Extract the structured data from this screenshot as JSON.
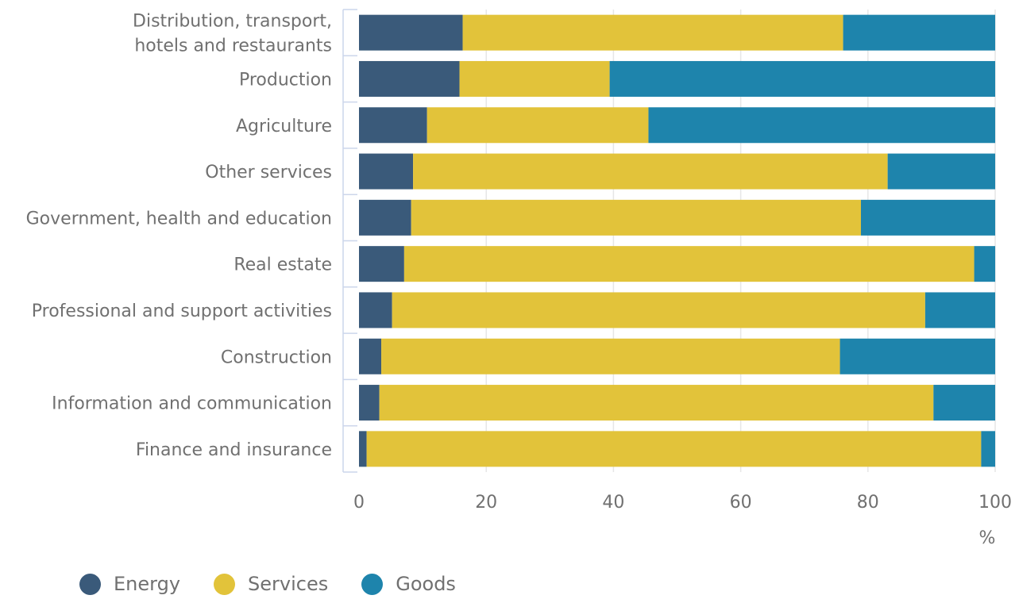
{
  "chart_data": {
    "type": "bar",
    "orientation": "horizontal",
    "stacked": true,
    "categories": [
      [
        "Distribution, transport,",
        "hotels and restaurants"
      ],
      [
        "Production"
      ],
      [
        "Agriculture"
      ],
      [
        "Other services"
      ],
      [
        "Government, health and education"
      ],
      [
        "Real estate"
      ],
      [
        "Professional and support activities"
      ],
      [
        "Construction"
      ],
      [
        "Information and communication"
      ],
      [
        "Finance and insurance"
      ]
    ],
    "series": [
      {
        "name": "Energy",
        "color": "#3a5a7a",
        "values": [
          16.3,
          15.8,
          10.7,
          8.5,
          8.2,
          7.1,
          5.2,
          3.5,
          3.2,
          1.2
        ]
      },
      {
        "name": "Services",
        "color": "#e2c33a",
        "values": [
          59.8,
          23.6,
          34.8,
          74.6,
          70.7,
          89.6,
          83.8,
          72.1,
          87.1,
          96.6
        ]
      },
      {
        "name": "Goods",
        "color": "#1e84ac",
        "values": [
          23.9,
          60.6,
          54.5,
          16.9,
          21.1,
          3.3,
          11.0,
          24.4,
          9.7,
          2.2
        ]
      }
    ],
    "xlim": [
      0,
      100
    ],
    "xticks": [
      0,
      20,
      40,
      60,
      80,
      100
    ],
    "xunit": "%",
    "grid": true,
    "legend_position": "bottom-left"
  }
}
